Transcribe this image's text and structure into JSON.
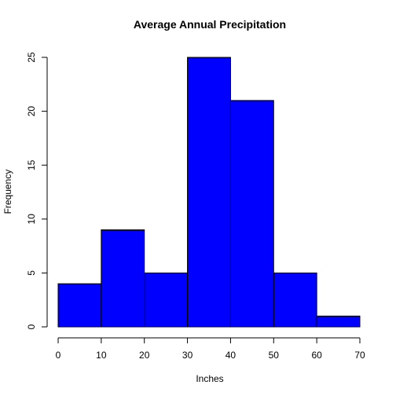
{
  "chart_data": {
    "type": "bar",
    "title": "Average Annual Precipitation",
    "xlabel": "Inches",
    "ylabel": "Frequency",
    "bin_edges": [
      0,
      10,
      20,
      30,
      40,
      50,
      60,
      70
    ],
    "values": [
      4,
      9,
      5,
      25,
      21,
      5,
      1
    ],
    "xlim": [
      0,
      70
    ],
    "ylim": [
      0,
      25
    ],
    "x_ticks": [
      0,
      10,
      20,
      30,
      40,
      50,
      60,
      70
    ],
    "y_ticks": [
      0,
      5,
      10,
      15,
      20,
      25
    ],
    "bar_color": "#0000ff",
    "bar_edge_color": "#000000",
    "grid": false,
    "legend": "none"
  }
}
